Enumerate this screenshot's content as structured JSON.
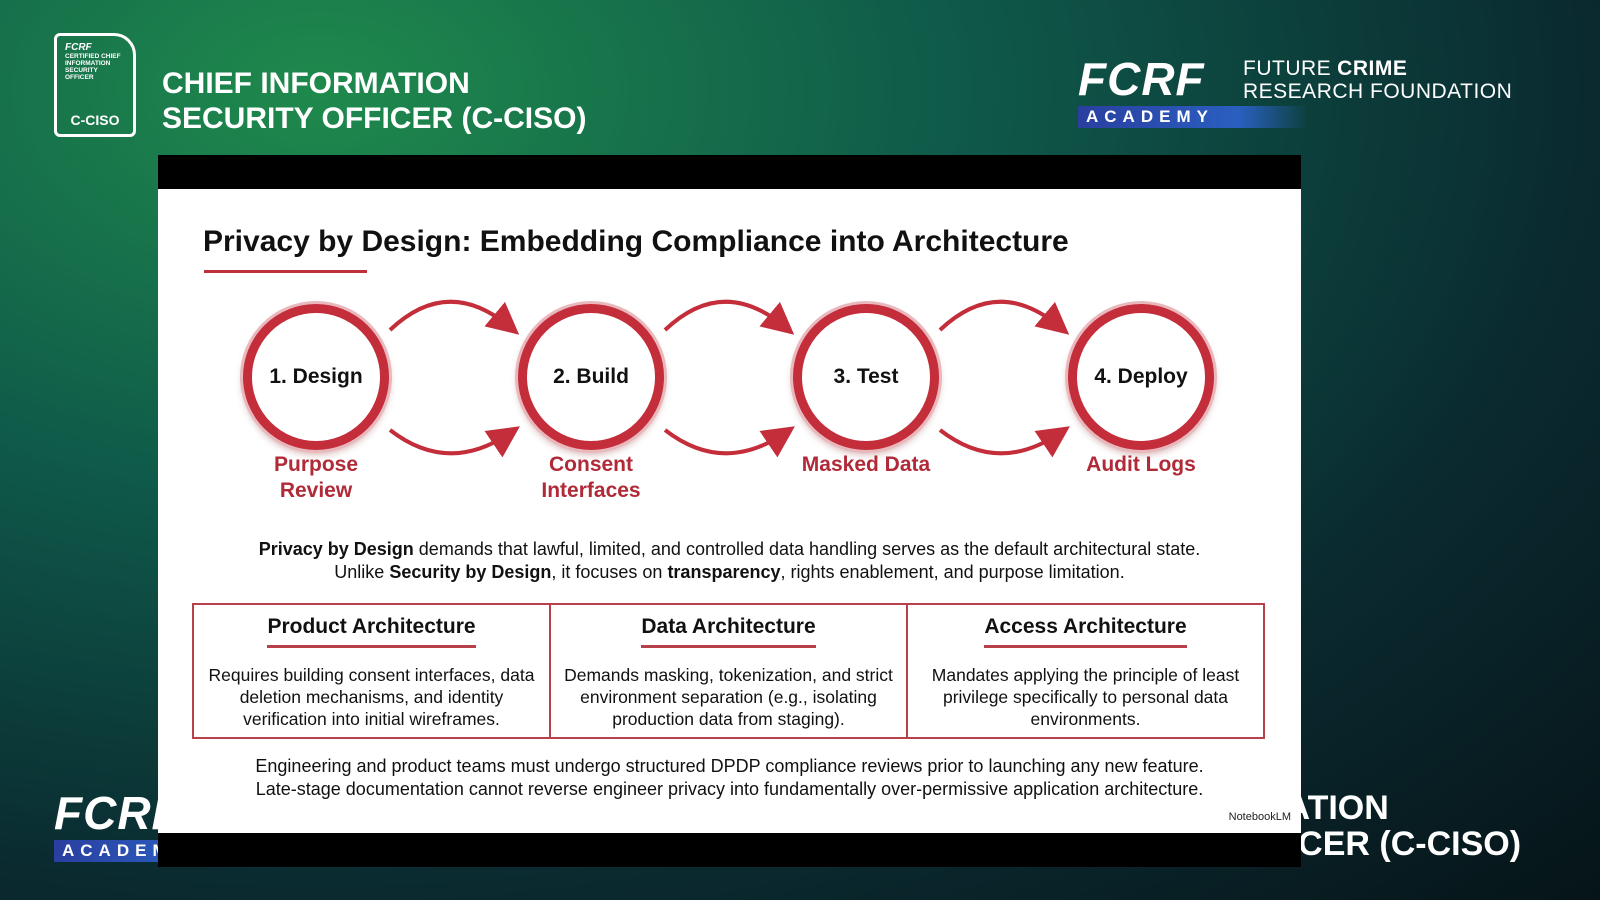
{
  "header": {
    "badge": {
      "brand": "FCRF",
      "lines": [
        "CERTIFIED CHIEF",
        "INFORMATION",
        "SECURITY",
        "OFFICER"
      ],
      "code": "C-CISO"
    },
    "title_lines": [
      "CHIEF INFORMATION",
      "SECURITY OFFICER (C-CISO)"
    ]
  },
  "logo": {
    "mark": "FCRF",
    "name_lines": [
      [
        {
          "text": "FUTURE"
        },
        {
          "text": "CRIME",
          "bold": true
        }
      ],
      [
        {
          "text": "RESEARCH FOUNDATION"
        }
      ]
    ],
    "academy": "ACADEMY"
  },
  "lower_third": {
    "mark": "FCRF",
    "academy": "ACADEMY",
    "title_lines": [
      "CHIEF INFORMATION",
      "SECURITY OFFICER (C-CISO)"
    ]
  },
  "slide": {
    "title": "Privacy by Design: Embedding Compliance into Architecture",
    "steps": [
      {
        "label": "1. Design",
        "caption": "Purpose Review"
      },
      {
        "label": "2. Build",
        "caption": "Consent Interfaces"
      },
      {
        "label": "3. Test",
        "caption": "Masked Data"
      },
      {
        "label": "4. Deploy",
        "caption": "Audit Logs"
      }
    ],
    "intro": [
      [
        {
          "text": "Privacy by Design",
          "bold": true
        },
        {
          "text": " demands that lawful, limited, and controlled data handling serves as the default architectural state."
        }
      ],
      [
        {
          "text": "Unlike "
        },
        {
          "text": "Security by Design",
          "bold": true
        },
        {
          "text": ", it focuses on "
        },
        {
          "text": "transparency",
          "bold": true
        },
        {
          "text": ", rights enablement, and purpose limitation."
        }
      ]
    ],
    "columns": [
      {
        "title": "Product Architecture",
        "text": "Requires building consent interfaces, data deletion mechanisms, and identity verification into initial wireframes."
      },
      {
        "title": "Data Architecture",
        "text": "Demands masking, tokenization, and strict environment separation (e.g., isolating production data from staging)."
      },
      {
        "title": "Access Architecture",
        "text": "Mandates applying the principle of least privilege specifically to personal data environments."
      }
    ],
    "footer_lines": [
      "Engineering and product teams must undergo structured DPDP compliance reviews prior to launching any new feature.",
      "Late-stage documentation cannot reverse engineer privacy into fundamentally over-permissive application architecture."
    ],
    "credit": "NotebookLM"
  }
}
